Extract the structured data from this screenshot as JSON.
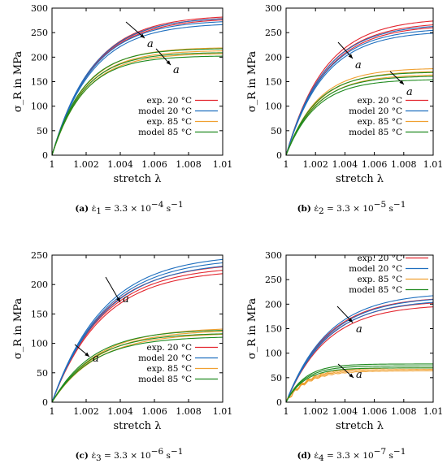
{
  "chart_data": [
    {
      "type": "line",
      "tag": "(a)",
      "caption_label": "ε̇",
      "caption_sub": "1",
      "caption_value": " = 3.3 × 10",
      "caption_exp": "−4",
      "caption_unit": " s",
      "caption_unit_exp": "−1",
      "xlabel": "stretch λ",
      "ylabel": "σ_R in MPa",
      "xlim": [
        1,
        1.01
      ],
      "ylim": [
        0,
        300
      ],
      "xticks": [
        "1",
        "1.002",
        "1.004",
        "1.006",
        "1.008",
        "1.01"
      ],
      "yticks": [
        "0",
        "50",
        "100",
        "150",
        "200",
        "250",
        "300"
      ],
      "legend_position": "lower-right",
      "annotations": [
        "a",
        "a"
      ],
      "series": [
        {
          "name": "exp. 20 °C",
          "color": "#e3262f",
          "kind": "red",
          "asymptotes": [
            286,
            283,
            280
          ],
          "k": 420
        },
        {
          "name": "model 20 °C",
          "color": "#1f6fbf",
          "kind": "blue",
          "asymptotes": [
            282,
            276,
            270
          ],
          "k": 430
        },
        {
          "name": "exp. 85 °C",
          "color": "#f0a030",
          "kind": "orange",
          "asymptotes": [
            220,
            214,
            208
          ],
          "k": 520
        },
        {
          "name": "model 85 °C",
          "color": "#1f8a1f",
          "kind": "green",
          "asymptotes": [
            218,
            210,
            203
          ],
          "k": 540
        }
      ]
    },
    {
      "type": "line",
      "tag": "(b)",
      "caption_label": "ε̇",
      "caption_sub": "2",
      "caption_value": " = 3.3 × 10",
      "caption_exp": "−5",
      "caption_unit": " s",
      "caption_unit_exp": "−1",
      "xlabel": "stretch λ",
      "ylabel": "σ_R in MPa",
      "xlim": [
        1,
        1.01
      ],
      "ylim": [
        0,
        300
      ],
      "xticks": [
        "1",
        "1.002",
        "1.004",
        "1.006",
        "1.008",
        "1.01"
      ],
      "yticks": [
        "0",
        "50",
        "100",
        "150",
        "200",
        "250",
        "300"
      ],
      "legend_position": "lower-right",
      "annotations": [
        "a",
        "a"
      ],
      "series": [
        {
          "name": "exp. 20 °C",
          "color": "#e3262f",
          "kind": "red",
          "asymptotes": [
            280,
            272,
            266
          ],
          "k": 380
        },
        {
          "name": "model 20 °C",
          "color": "#1f6fbf",
          "kind": "blue",
          "asymptotes": [
            268,
            260,
            254
          ],
          "k": 390
        },
        {
          "name": "exp. 85 °C",
          "color": "#f0a030",
          "kind": "orange",
          "asymptotes": [
            178,
            172,
            165
          ],
          "k": 470
        },
        {
          "name": "model 85 °C",
          "color": "#1f8a1f",
          "kind": "green",
          "asymptotes": [
            170,
            162,
            155
          ],
          "k": 490
        }
      ]
    },
    {
      "type": "line",
      "tag": "(c)",
      "caption_label": "ε̇",
      "caption_sub": "3",
      "caption_value": " = 3.3 × 10",
      "caption_exp": "−6",
      "caption_unit": " s",
      "caption_unit_exp": "−1",
      "xlabel": "stretch λ",
      "ylabel": "σ_R in MPa",
      "xlim": [
        1,
        1.01
      ],
      "ylim": [
        0,
        250
      ],
      "xticks": [
        "1",
        "1.002",
        "1.004",
        "1.006",
        "1.008",
        "1.01"
      ],
      "yticks": [
        "0",
        "50",
        "100",
        "150",
        "200",
        "250"
      ],
      "legend_position": "lower-right",
      "annotations": [
        "a",
        "a"
      ],
      "series": [
        {
          "name": "exp. 20 °C",
          "color": "#e3262f",
          "kind": "red",
          "asymptotes": [
            238,
            232,
            226
          ],
          "k": 340
        },
        {
          "name": "model 20 °C",
          "color": "#1f6fbf",
          "kind": "blue",
          "asymptotes": [
            252,
            246,
            240
          ],
          "k": 330
        },
        {
          "name": "exp. 85 °C",
          "color": "#f0a030",
          "kind": "orange",
          "asymptotes": [
            127,
            123,
            118
          ],
          "k": 380
        },
        {
          "name": "model 85 °C",
          "color": "#1f8a1f",
          "kind": "green",
          "asymptotes": [
            124,
            118,
            112
          ],
          "k": 420
        }
      ]
    },
    {
      "type": "line",
      "tag": "(d)",
      "caption_label": "ε̇",
      "caption_sub": "4",
      "caption_value": " = 3.3 × 10",
      "caption_exp": "−7",
      "caption_unit": " s",
      "caption_unit_exp": "−1",
      "xlabel": "stretch λ",
      "ylabel": "σ_R in MPa",
      "xlim": [
        1,
        1.01
      ],
      "ylim": [
        0,
        300
      ],
      "xticks": [
        "1",
        "1.002",
        "1.004",
        "1.006",
        "1.008",
        "1.01"
      ],
      "yticks": [
        "0",
        "50",
        "100",
        "150",
        "200",
        "250",
        "300"
      ],
      "legend_position": "upper-left",
      "annotations": [
        "a",
        "a"
      ],
      "series": [
        {
          "name": "exp. 20 °C",
          "color": "#e3262f",
          "kind": "red",
          "asymptotes": [
            216,
            208,
            200
          ],
          "k": 360
        },
        {
          "name": "model 20 °C",
          "color": "#1f6fbf",
          "kind": "blue",
          "asymptotes": [
            224,
            216,
            210
          ],
          "k": 350
        },
        {
          "name": "exp. 85 °C",
          "color": "#f0a030",
          "kind": "orange",
          "asymptotes": [
            70,
            67,
            64
          ],
          "k": 700
        },
        {
          "name": "model 85 °C",
          "color": "#1f8a1f",
          "kind": "green",
          "asymptotes": [
            78,
            74,
            70
          ],
          "k": 800
        }
      ]
    }
  ]
}
